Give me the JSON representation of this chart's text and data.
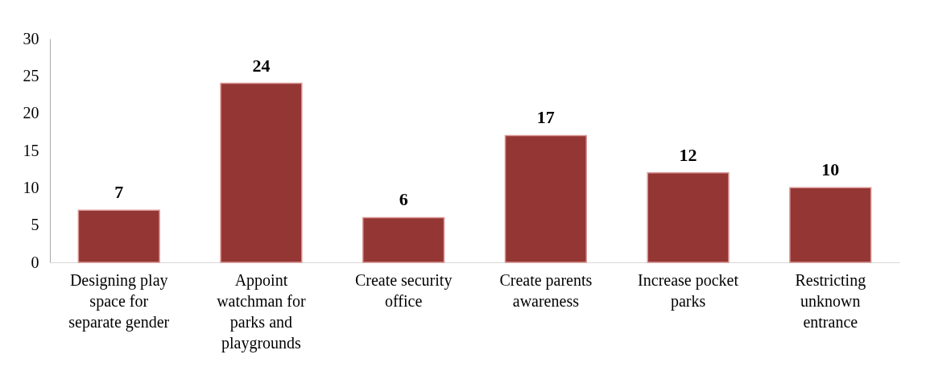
{
  "chart_data": {
    "type": "bar",
    "categories": [
      "Designing play space for separate gender",
      "Appoint watchman for parks and playgrounds",
      "Create security office",
      "Create parents awareness",
      "Increase pocket parks",
      "Restricting unknown entrance"
    ],
    "values": [
      7,
      24,
      6,
      17,
      12,
      10
    ],
    "color": "#943634",
    "ylim": [
      0,
      30
    ],
    "yticks": [
      0,
      5,
      10,
      15,
      20,
      25,
      30
    ],
    "data_labels": true,
    "grid": false
  }
}
